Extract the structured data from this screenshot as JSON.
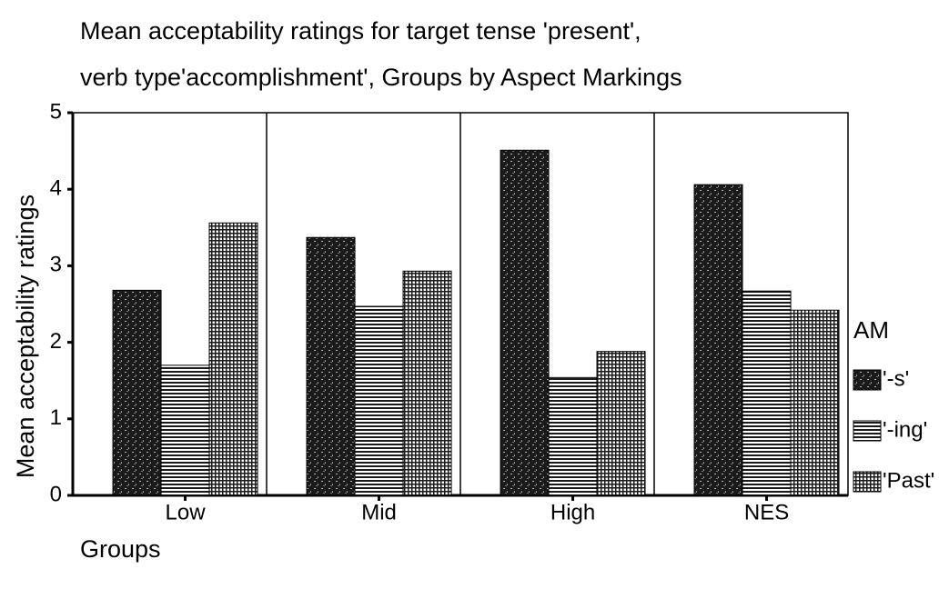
{
  "chart_data": {
    "type": "bar",
    "title": [
      "Mean acceptability ratings for target tense 'present',",
      "verb type'accomplishment', Groups by Aspect Markings"
    ],
    "ylabel": "Mean acceptability ratings",
    "xlabel": "Groups",
    "legend_title": "AM",
    "legend": "right",
    "categories": [
      "Low",
      "Mid",
      "High",
      "NES"
    ],
    "series": [
      {
        "name": "'-s'",
        "color": "#1a1a1a",
        "pattern": "speckle",
        "values": [
          2.68,
          3.37,
          4.51,
          4.06
        ]
      },
      {
        "name": "'-ing'",
        "color": "#1a1a1a",
        "pattern": "horizontal",
        "values": [
          1.7,
          2.47,
          1.54,
          2.67
        ]
      },
      {
        "name": "'Past'",
        "color": "#1a1a1a",
        "pattern": "grid",
        "values": [
          3.56,
          2.93,
          1.88,
          2.42
        ]
      }
    ],
    "ylim": [
      0,
      5
    ],
    "yticks": [
      0,
      1,
      2,
      3,
      4,
      5
    ],
    "grid": false
  }
}
